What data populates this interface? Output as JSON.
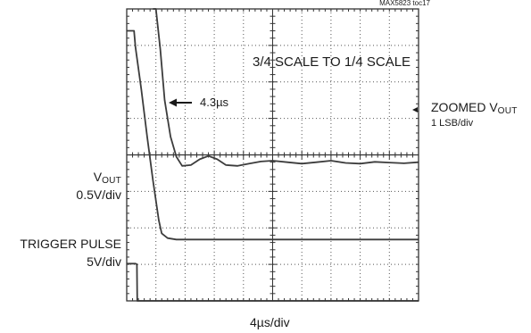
{
  "chart_data": {
    "type": "line",
    "figure_id": "MAX5823 toc17",
    "annotation": "3/4 SCALE TO 1/4 SCALE",
    "time_marker": "4.3µs",
    "xlabel": "4µs/div",
    "grid": "on",
    "divisions": {
      "x": 10,
      "y": 8
    },
    "channels": [
      {
        "name_main": "ZOOMED V",
        "name_sub": "OUT",
        "scale": "1 LSB/div",
        "side": "right"
      },
      {
        "name_main": "V",
        "name_sub": "OUT",
        "scale": "0.5V/div",
        "side": "left"
      },
      {
        "name_main": "TRIGGER PULSE",
        "name_sub": "",
        "scale": "5V/div",
        "side": "left"
      }
    ],
    "series": [
      {
        "name": "ZOOMED VOUT",
        "x_div": [
          0.9,
          1.0,
          1.15,
          1.3,
          1.5,
          1.7,
          1.9,
          2.2,
          2.5,
          2.8,
          3.1,
          3.4,
          3.8,
          4.2,
          4.6,
          5.0,
          5.5,
          6.0,
          6.5,
          7.0,
          7.5,
          8.0,
          8.5,
          9.0,
          9.5,
          10.0
        ],
        "y_div": [
          8.2,
          8.0,
          6.9,
          5.5,
          4.5,
          3.95,
          3.7,
          3.72,
          3.88,
          3.97,
          3.88,
          3.72,
          3.7,
          3.76,
          3.82,
          3.84,
          3.8,
          3.76,
          3.8,
          3.84,
          3.78,
          3.76,
          3.81,
          3.79,
          3.77,
          3.8
        ]
      },
      {
        "name": "VOUT",
        "x_div": [
          0,
          0.25,
          0.3,
          0.5,
          0.7,
          0.9,
          1.1,
          1.2,
          1.4,
          1.7,
          2.0,
          4.0,
          7.0,
          10.0
        ],
        "y_div": [
          7.4,
          7.4,
          6.95,
          5.8,
          4.5,
          3.3,
          2.2,
          1.85,
          1.72,
          1.68,
          1.68,
          1.68,
          1.68,
          1.68
        ]
      },
      {
        "name": "TRIGGER PULSE",
        "x_div": [
          0,
          0.3,
          0.35,
          0.36,
          1.0,
          4.0,
          7.0,
          10.0
        ],
        "y_div": [
          1.02,
          1.02,
          1.0,
          0.0,
          0.0,
          0.0,
          0.0,
          0.0
        ]
      }
    ]
  },
  "colors": {
    "trace": "#3c3c3c",
    "grid": "#555555",
    "frame": "#333333"
  }
}
